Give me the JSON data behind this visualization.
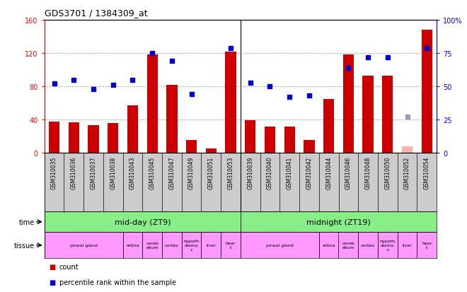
{
  "title": "GDS3701 / 1384309_at",
  "samples": [
    "GSM310035",
    "GSM310036",
    "GSM310037",
    "GSM310038",
    "GSM310043",
    "GSM310045",
    "GSM310047",
    "GSM310049",
    "GSM310051",
    "GSM310053",
    "GSM310039",
    "GSM310040",
    "GSM310041",
    "GSM310042",
    "GSM310044",
    "GSM310046",
    "GSM310048",
    "GSM310050",
    "GSM310052",
    "GSM310054"
  ],
  "counts": [
    38,
    37,
    33,
    36,
    57,
    118,
    82,
    16,
    5,
    122,
    39,
    32,
    32,
    16,
    65,
    118,
    93,
    93,
    8,
    148
  ],
  "ranks": [
    52,
    55,
    48,
    51,
    55,
    75,
    69,
    44,
    null,
    79,
    53,
    50,
    42,
    43,
    null,
    64,
    72,
    72,
    null,
    79
  ],
  "absent_counts": [
    null,
    null,
    null,
    null,
    null,
    null,
    null,
    null,
    null,
    null,
    null,
    null,
    null,
    null,
    null,
    null,
    null,
    null,
    8,
    null
  ],
  "absent_ranks": [
    null,
    null,
    null,
    null,
    null,
    null,
    null,
    null,
    null,
    null,
    null,
    null,
    null,
    null,
    null,
    null,
    null,
    null,
    27,
    null
  ],
  "bar_color": "#cc0000",
  "absent_bar_color": "#ffb0b0",
  "rank_color": "#0000cc",
  "absent_rank_color": "#9999bb",
  "ylim_left": [
    0,
    160
  ],
  "ylim_right": [
    0,
    100
  ],
  "yticks_left": [
    0,
    40,
    80,
    120,
    160
  ],
  "yticks_right": [
    0,
    25,
    50,
    75,
    100
  ],
  "ytick_labels_left": [
    "0",
    "40",
    "80",
    "120",
    "160"
  ],
  "ytick_labels_right": [
    "0",
    "25",
    "50",
    "75",
    "100%"
  ],
  "time_row": [
    {
      "label": "mid-day (ZT9)",
      "start": 0,
      "end": 10,
      "color": "#88ee88"
    },
    {
      "label": "midnight (ZT19)",
      "start": 10,
      "end": 20,
      "color": "#88ee88"
    }
  ],
  "tissue_row": [
    {
      "label": "pineal gland",
      "start": 0,
      "end": 4,
      "color": "#ff99ff"
    },
    {
      "label": "retina",
      "start": 4,
      "end": 5,
      "color": "#ff99ff"
    },
    {
      "label": "cereb\nellum",
      "start": 5,
      "end": 6,
      "color": "#ff99ff"
    },
    {
      "label": "cortex",
      "start": 6,
      "end": 7,
      "color": "#ff99ff"
    },
    {
      "label": "hypoth\nalamu\ns",
      "start": 7,
      "end": 8,
      "color": "#ff99ff"
    },
    {
      "label": "liver",
      "start": 8,
      "end": 9,
      "color": "#ff99ff"
    },
    {
      "label": "hear\nt",
      "start": 9,
      "end": 10,
      "color": "#ff99ff"
    },
    {
      "label": "pineal gland",
      "start": 10,
      "end": 14,
      "color": "#ff99ff"
    },
    {
      "label": "retina",
      "start": 14,
      "end": 15,
      "color": "#ff99ff"
    },
    {
      "label": "cereb\nellum",
      "start": 15,
      "end": 16,
      "color": "#ff99ff"
    },
    {
      "label": "cortex",
      "start": 16,
      "end": 17,
      "color": "#ff99ff"
    },
    {
      "label": "hypoth\nalamu\ns",
      "start": 17,
      "end": 18,
      "color": "#ff99ff"
    },
    {
      "label": "liver",
      "start": 18,
      "end": 19,
      "color": "#ff99ff"
    },
    {
      "label": "hear\nt",
      "start": 19,
      "end": 20,
      "color": "#ff99ff"
    }
  ],
  "xtick_bg": "#cccccc",
  "background_color": "#ffffff",
  "plot_bg_color": "#ffffff",
  "grid_color": "#888888"
}
